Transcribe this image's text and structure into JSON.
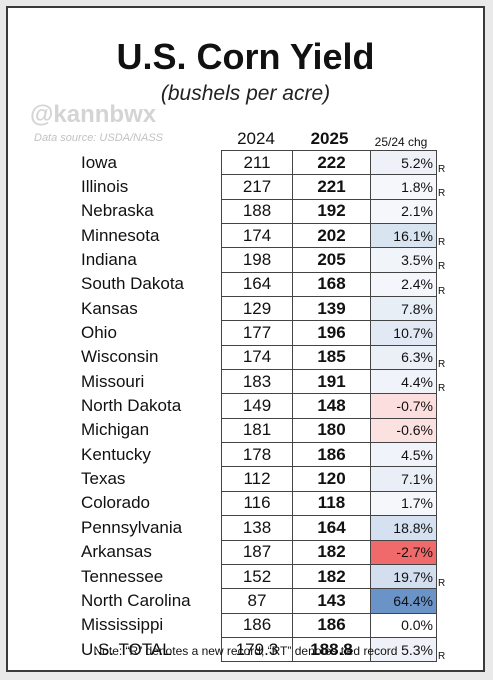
{
  "title": "U.S. Corn Yield",
  "subtitle": "(bushels per acre)",
  "watermark": "@kannbwx",
  "source": "Data source: USDA/NASS",
  "columns": {
    "y2024": "2024",
    "y2025": "2025",
    "change": "25/24 chg"
  },
  "rows": [
    {
      "state": "Iowa",
      "v2024": "211",
      "v2025": "222",
      "change": "5.2%",
      "record": "R",
      "color": "#eef2f8"
    },
    {
      "state": "Illinois",
      "v2024": "217",
      "v2025": "221",
      "change": "1.8%",
      "record": "R",
      "color": "#f6f7fb"
    },
    {
      "state": "Nebraska",
      "v2024": "188",
      "v2025": "192",
      "change": "2.1%",
      "record": "",
      "color": "#f5f7fb"
    },
    {
      "state": "Minnesota",
      "v2024": "174",
      "v2025": "202",
      "change": "16.1%",
      "record": "R",
      "color": "#d9e4f1"
    },
    {
      "state": "Indiana",
      "v2024": "198",
      "v2025": "205",
      "change": "3.5%",
      "record": "R",
      "color": "#f1f4f9"
    },
    {
      "state": "South Dakota",
      "v2024": "164",
      "v2025": "168",
      "change": "2.4%",
      "record": "R",
      "color": "#f4f6fb"
    },
    {
      "state": "Kansas",
      "v2024": "129",
      "v2025": "139",
      "change": "7.8%",
      "record": "",
      "color": "#e8eef6"
    },
    {
      "state": "Ohio",
      "v2024": "177",
      "v2025": "196",
      "change": "10.7%",
      "record": "",
      "color": "#e2e9f4"
    },
    {
      "state": "Wisconsin",
      "v2024": "174",
      "v2025": "185",
      "change": "6.3%",
      "record": "R",
      "color": "#ebf0f7"
    },
    {
      "state": "Missouri",
      "v2024": "183",
      "v2025": "191",
      "change": "4.4%",
      "record": "R",
      "color": "#f0f3f9"
    },
    {
      "state": "North Dakota",
      "v2024": "149",
      "v2025": "148",
      "change": "-0.7%",
      "record": "",
      "color": "#fbdedd"
    },
    {
      "state": "Michigan",
      "v2024": "181",
      "v2025": "180",
      "change": "-0.6%",
      "record": "",
      "color": "#fbe2e1"
    },
    {
      "state": "Kentucky",
      "v2024": "178",
      "v2025": "186",
      "change": "4.5%",
      "record": "",
      "color": "#f0f3f9"
    },
    {
      "state": "Texas",
      "v2024": "112",
      "v2025": "120",
      "change": "7.1%",
      "record": "",
      "color": "#eaeff7"
    },
    {
      "state": "Colorado",
      "v2024": "116",
      "v2025": "118",
      "change": "1.7%",
      "record": "",
      "color": "#f6f7fb"
    },
    {
      "state": "Pennsylvania",
      "v2024": "138",
      "v2025": "164",
      "change": "18.8%",
      "record": "",
      "color": "#d5e1f0"
    },
    {
      "state": "Arkansas",
      "v2024": "187",
      "v2025": "182",
      "change": "-2.7%",
      "record": "",
      "color": "#f06a6c"
    },
    {
      "state": "Tennessee",
      "v2024": "152",
      "v2025": "182",
      "change": "19.7%",
      "record": "R",
      "color": "#d3dfef"
    },
    {
      "state": "North Carolina",
      "v2024": "87",
      "v2025": "143",
      "change": "64.4%",
      "record": "",
      "color": "#6a93c7"
    },
    {
      "state": "Mississippi",
      "v2024": "186",
      "v2025": "186",
      "change": "0.0%",
      "record": "",
      "color": "#ffffff"
    },
    {
      "state": "U.S. TOTAL",
      "v2024": "179.3",
      "v2025": "188.8",
      "change": "5.3%",
      "record": "R",
      "color": "#eef2f8"
    }
  ],
  "note": "Note: “R” denotes a new record, “RT” denotes tied record"
}
